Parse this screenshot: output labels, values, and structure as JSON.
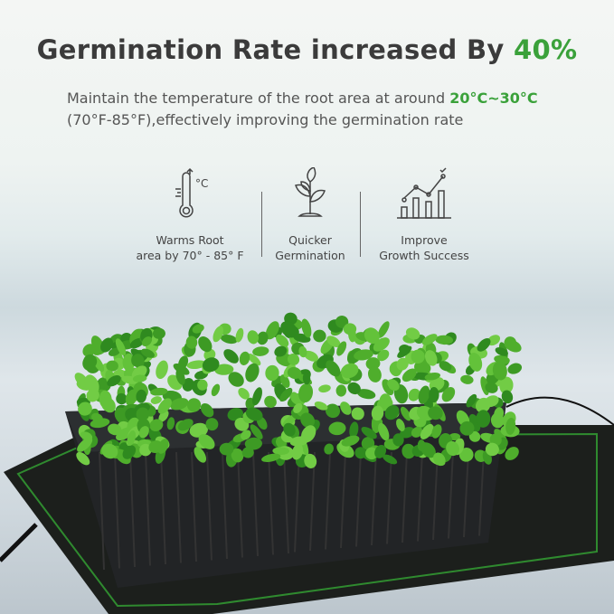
{
  "headline": {
    "text": "Germination Rate increased By ",
    "highlight": "40%"
  },
  "subtitle": {
    "line1": "Maintain the temperature of the root area at around ",
    "highlight": "20°C~30°C",
    "line2": "(70°F-85°F),effectively improving the germination rate"
  },
  "features": [
    {
      "icon": "thermometer-icon",
      "line1": "Warms Root",
      "line2": "area by 70° - 85° F"
    },
    {
      "icon": "sprout-icon",
      "line1": "Quicker",
      "line2": "Germination"
    },
    {
      "icon": "growth-chart-icon",
      "line1": "Improve",
      "line2": "Growth Success"
    }
  ],
  "colors": {
    "accent": "#3aa13a",
    "text": "#3b3b3b",
    "mat": "#1c1f1c",
    "mat_border": "#2f8a2f",
    "tray": "#222426",
    "leaf": "#4fae2c"
  }
}
